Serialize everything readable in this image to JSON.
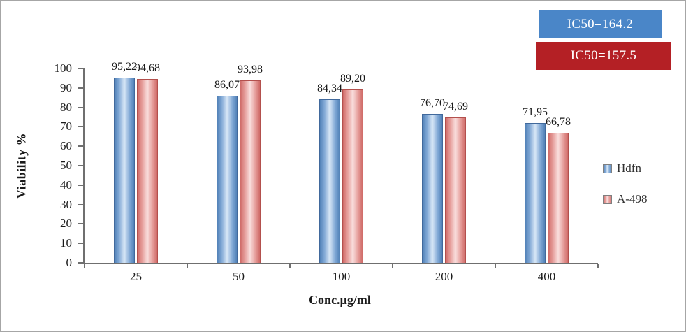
{
  "chart_data": {
    "type": "bar",
    "title": "",
    "categories": [
      "25",
      "50",
      "100",
      "200",
      "400"
    ],
    "series": [
      {
        "name": "Hdfn",
        "color": "#6f9fd8",
        "values": [
          95.22,
          86.07,
          84.34,
          76.7,
          71.95
        ],
        "labels": [
          "95,22",
          "86,07",
          "84,34",
          "76,70",
          "71,95"
        ]
      },
      {
        "name": "A-498",
        "color": "#e1807d",
        "values": [
          94.68,
          93.98,
          89.2,
          74.69,
          66.78
        ],
        "labels": [
          "94,68",
          "93,98",
          "89,20",
          "74,69",
          "66,78"
        ]
      }
    ],
    "xlabel": "Conc.µg/ml",
    "ylabel": "Viability %",
    "ylim": [
      0,
      100
    ],
    "ytick_step": 10,
    "grid": false,
    "legend_position": "right"
  },
  "ic50_badges": [
    {
      "label": "IC50=164.2",
      "color": "#4a86c8"
    },
    {
      "label": "IC50=157.5",
      "color": "#b42025"
    }
  ]
}
